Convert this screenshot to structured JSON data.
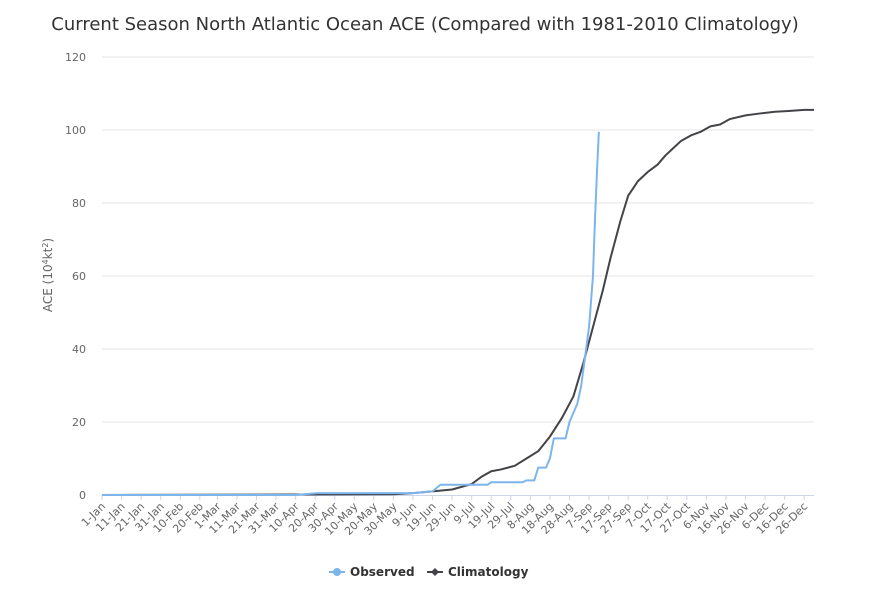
{
  "chart_data": {
    "type": "line",
    "title": "Current Season North Atlantic Ocean ACE (Compared with 1981-2010 Climatology)",
    "ylabel_parts": [
      "ACE (10",
      "4",
      "kt",
      "2",
      ")"
    ],
    "ylim": [
      0,
      120
    ],
    "yticks": [
      "0",
      "20",
      "40",
      "60",
      "80",
      "100",
      "120"
    ],
    "xlim": [
      1,
      365
    ],
    "x_tick_days": [
      1,
      11,
      21,
      31,
      41,
      51,
      60,
      70,
      80,
      90,
      100,
      110,
      120,
      130,
      140,
      150,
      160,
      170,
      180,
      190,
      200,
      210,
      220,
      230,
      240,
      250,
      260,
      270,
      280,
      290,
      300,
      310,
      320,
      330,
      340,
      350,
      360
    ],
    "x_tick_labels": [
      "1-Jan",
      "11-Jan",
      "21-Jan",
      "31-Jan",
      "10-Feb",
      "20-Feb",
      "1-Mar",
      "11-Mar",
      "21-Mar",
      "31-Mar",
      "10-Apr",
      "20-Apr",
      "30-Apr",
      "10-May",
      "20-May",
      "30-May",
      "9-Jun",
      "19-Jun",
      "29-Jun",
      "9-Jul",
      "19-Jul",
      "29-Jul",
      "8-Aug",
      "18-Aug",
      "28-Aug",
      "7-Sep",
      "17-Sep",
      "27-Sep",
      "7-Oct",
      "17-Oct",
      "27-Oct",
      "6-Nov",
      "16-Nov",
      "26-Nov",
      "6-Dec",
      "16-Dec",
      "26-Dec"
    ],
    "series": [
      {
        "name": "Observed",
        "color": "#7cb5ec",
        "marker": "circle",
        "points": [
          [
            1,
            0
          ],
          [
            100,
            0
          ],
          [
            111,
            0.5
          ],
          [
            160,
            0.5
          ],
          [
            170,
            1
          ],
          [
            174,
            2.8
          ],
          [
            198,
            2.8
          ],
          [
            200,
            3.5
          ],
          [
            216,
            3.5
          ],
          [
            218,
            4
          ],
          [
            222,
            4
          ],
          [
            224,
            7.5
          ],
          [
            228,
            7.5
          ],
          [
            230,
            10
          ],
          [
            232,
            15.5
          ],
          [
            238,
            15.5
          ],
          [
            240,
            20
          ],
          [
            244,
            25
          ],
          [
            246,
            30
          ],
          [
            248,
            38
          ],
          [
            250,
            46
          ],
          [
            252,
            60
          ],
          [
            253,
            75
          ],
          [
            254,
            88
          ],
          [
            255,
            99.5
          ]
        ]
      },
      {
        "name": "Climatology",
        "color": "#434348",
        "marker": "diamond",
        "points": [
          [
            1,
            0
          ],
          [
            150,
            0.2
          ],
          [
            160,
            0.5
          ],
          [
            170,
            1
          ],
          [
            180,
            1.5
          ],
          [
            190,
            3
          ],
          [
            195,
            5
          ],
          [
            200,
            6.5
          ],
          [
            205,
            7
          ],
          [
            212,
            8
          ],
          [
            218,
            10
          ],
          [
            224,
            12
          ],
          [
            230,
            16
          ],
          [
            236,
            21
          ],
          [
            242,
            27
          ],
          [
            247,
            36
          ],
          [
            252,
            46
          ],
          [
            257,
            56
          ],
          [
            261,
            65
          ],
          [
            266,
            75
          ],
          [
            270,
            82
          ],
          [
            275,
            86
          ],
          [
            280,
            88.5
          ],
          [
            285,
            90.5
          ],
          [
            289,
            93
          ],
          [
            293,
            95
          ],
          [
            297,
            97
          ],
          [
            302,
            98.5
          ],
          [
            307,
            99.5
          ],
          [
            312,
            101
          ],
          [
            317,
            101.5
          ],
          [
            322,
            103
          ],
          [
            330,
            104
          ],
          [
            337,
            104.5
          ],
          [
            345,
            105
          ],
          [
            352,
            105.2
          ],
          [
            360,
            105.5
          ],
          [
            365,
            105.5
          ]
        ]
      }
    ],
    "legend_position": "bottom",
    "grid": true
  }
}
